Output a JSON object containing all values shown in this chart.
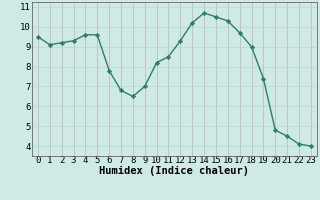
{
  "xlabel": "Humidex (Indice chaleur)",
  "x": [
    0,
    1,
    2,
    3,
    4,
    5,
    6,
    7,
    8,
    9,
    10,
    11,
    12,
    13,
    14,
    15,
    16,
    17,
    18,
    19,
    20,
    21,
    22,
    23
  ],
  "y": [
    9.5,
    9.1,
    9.2,
    9.3,
    9.6,
    9.6,
    7.8,
    6.8,
    6.5,
    7.0,
    8.2,
    8.5,
    9.3,
    10.2,
    10.7,
    10.5,
    10.3,
    9.7,
    9.0,
    7.4,
    4.8,
    4.5,
    4.1,
    4.0
  ],
  "ylim": [
    3.5,
    11.25
  ],
  "xlim": [
    -0.5,
    23.5
  ],
  "yticks": [
    4,
    5,
    6,
    7,
    8,
    9,
    10,
    11
  ],
  "xticks": [
    0,
    1,
    2,
    3,
    4,
    5,
    6,
    7,
    8,
    9,
    10,
    11,
    12,
    13,
    14,
    15,
    16,
    17,
    18,
    19,
    20,
    21,
    22,
    23
  ],
  "line_color": "#2e7d6e",
  "marker": "D",
  "marker_size": 2.2,
  "bg_color": "#ceeae6",
  "grid_v_color": "#c4b0b0",
  "grid_h_color": "#b8d8d4",
  "xlabel_fontsize": 7.5,
  "tick_fontsize": 6.5
}
